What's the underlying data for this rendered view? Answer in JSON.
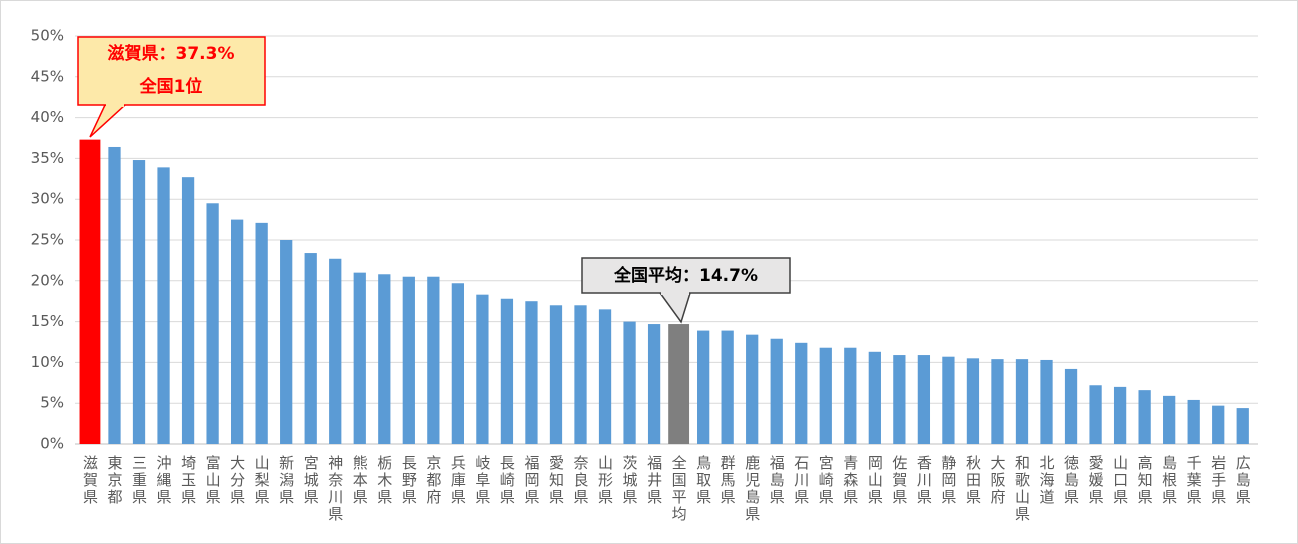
{
  "chart_data": {
    "type": "bar",
    "categories": [
      "滋賀県",
      "東京都",
      "三重県",
      "沖縄県",
      "埼玉県",
      "富山県",
      "大分県",
      "山梨県",
      "新潟県",
      "宮城県",
      "神奈川県",
      "熊本県",
      "栃木県",
      "長野県",
      "京都府",
      "兵庫県",
      "岐阜県",
      "長崎県",
      "福岡県",
      "愛知県",
      "奈良県",
      "山形県",
      "茨城県",
      "福井県",
      "全国平均",
      "鳥取県",
      "群馬県",
      "鹿児島県",
      "福島県",
      "石川県",
      "宮崎県",
      "青森県",
      "岡山県",
      "佐賀県",
      "香川県",
      "静岡県",
      "秋田県",
      "大阪府",
      "和歌山県",
      "北海道",
      "徳島県",
      "愛媛県",
      "山口県",
      "高知県",
      "島根県",
      "千葉県",
      "岩手県",
      "広島県"
    ],
    "values": [
      37.3,
      36.4,
      34.8,
      33.9,
      32.7,
      29.5,
      27.5,
      27.1,
      25.0,
      23.4,
      22.7,
      21.0,
      20.8,
      20.5,
      20.5,
      19.7,
      18.3,
      17.8,
      17.5,
      17.0,
      17.0,
      16.5,
      15.0,
      14.7,
      14.7,
      13.9,
      13.9,
      13.4,
      12.9,
      12.4,
      11.8,
      11.8,
      11.3,
      10.9,
      10.9,
      10.7,
      10.5,
      10.4,
      10.4,
      10.3,
      9.2,
      7.2,
      7.0,
      6.6,
      5.9,
      5.4,
      4.7,
      4.4
    ],
    "color": "#5b9bd5",
    "highlights": [
      {
        "index": 0,
        "color": "#ff0000"
      },
      {
        "index": 24,
        "color": "#7f7f7f"
      }
    ],
    "ylim": [
      0,
      50
    ],
    "yticks": [
      {
        "value": 0,
        "label": "0%"
      },
      {
        "value": 5,
        "label": "5%"
      },
      {
        "value": 10,
        "label": "10%"
      },
      {
        "value": 15,
        "label": "15%"
      },
      {
        "value": 20,
        "label": "20%"
      },
      {
        "value": 25,
        "label": "25%"
      },
      {
        "value": 30,
        "label": "30%"
      },
      {
        "value": 35,
        "label": "35%"
      },
      {
        "value": 40,
        "label": "40%"
      },
      {
        "value": 45,
        "label": "45%"
      },
      {
        "value": 50,
        "label": "50%"
      }
    ],
    "grid": true,
    "annotations": [
      "滋賀県：37.3%",
      "全国1位",
      "全国平均：14.7%"
    ]
  }
}
